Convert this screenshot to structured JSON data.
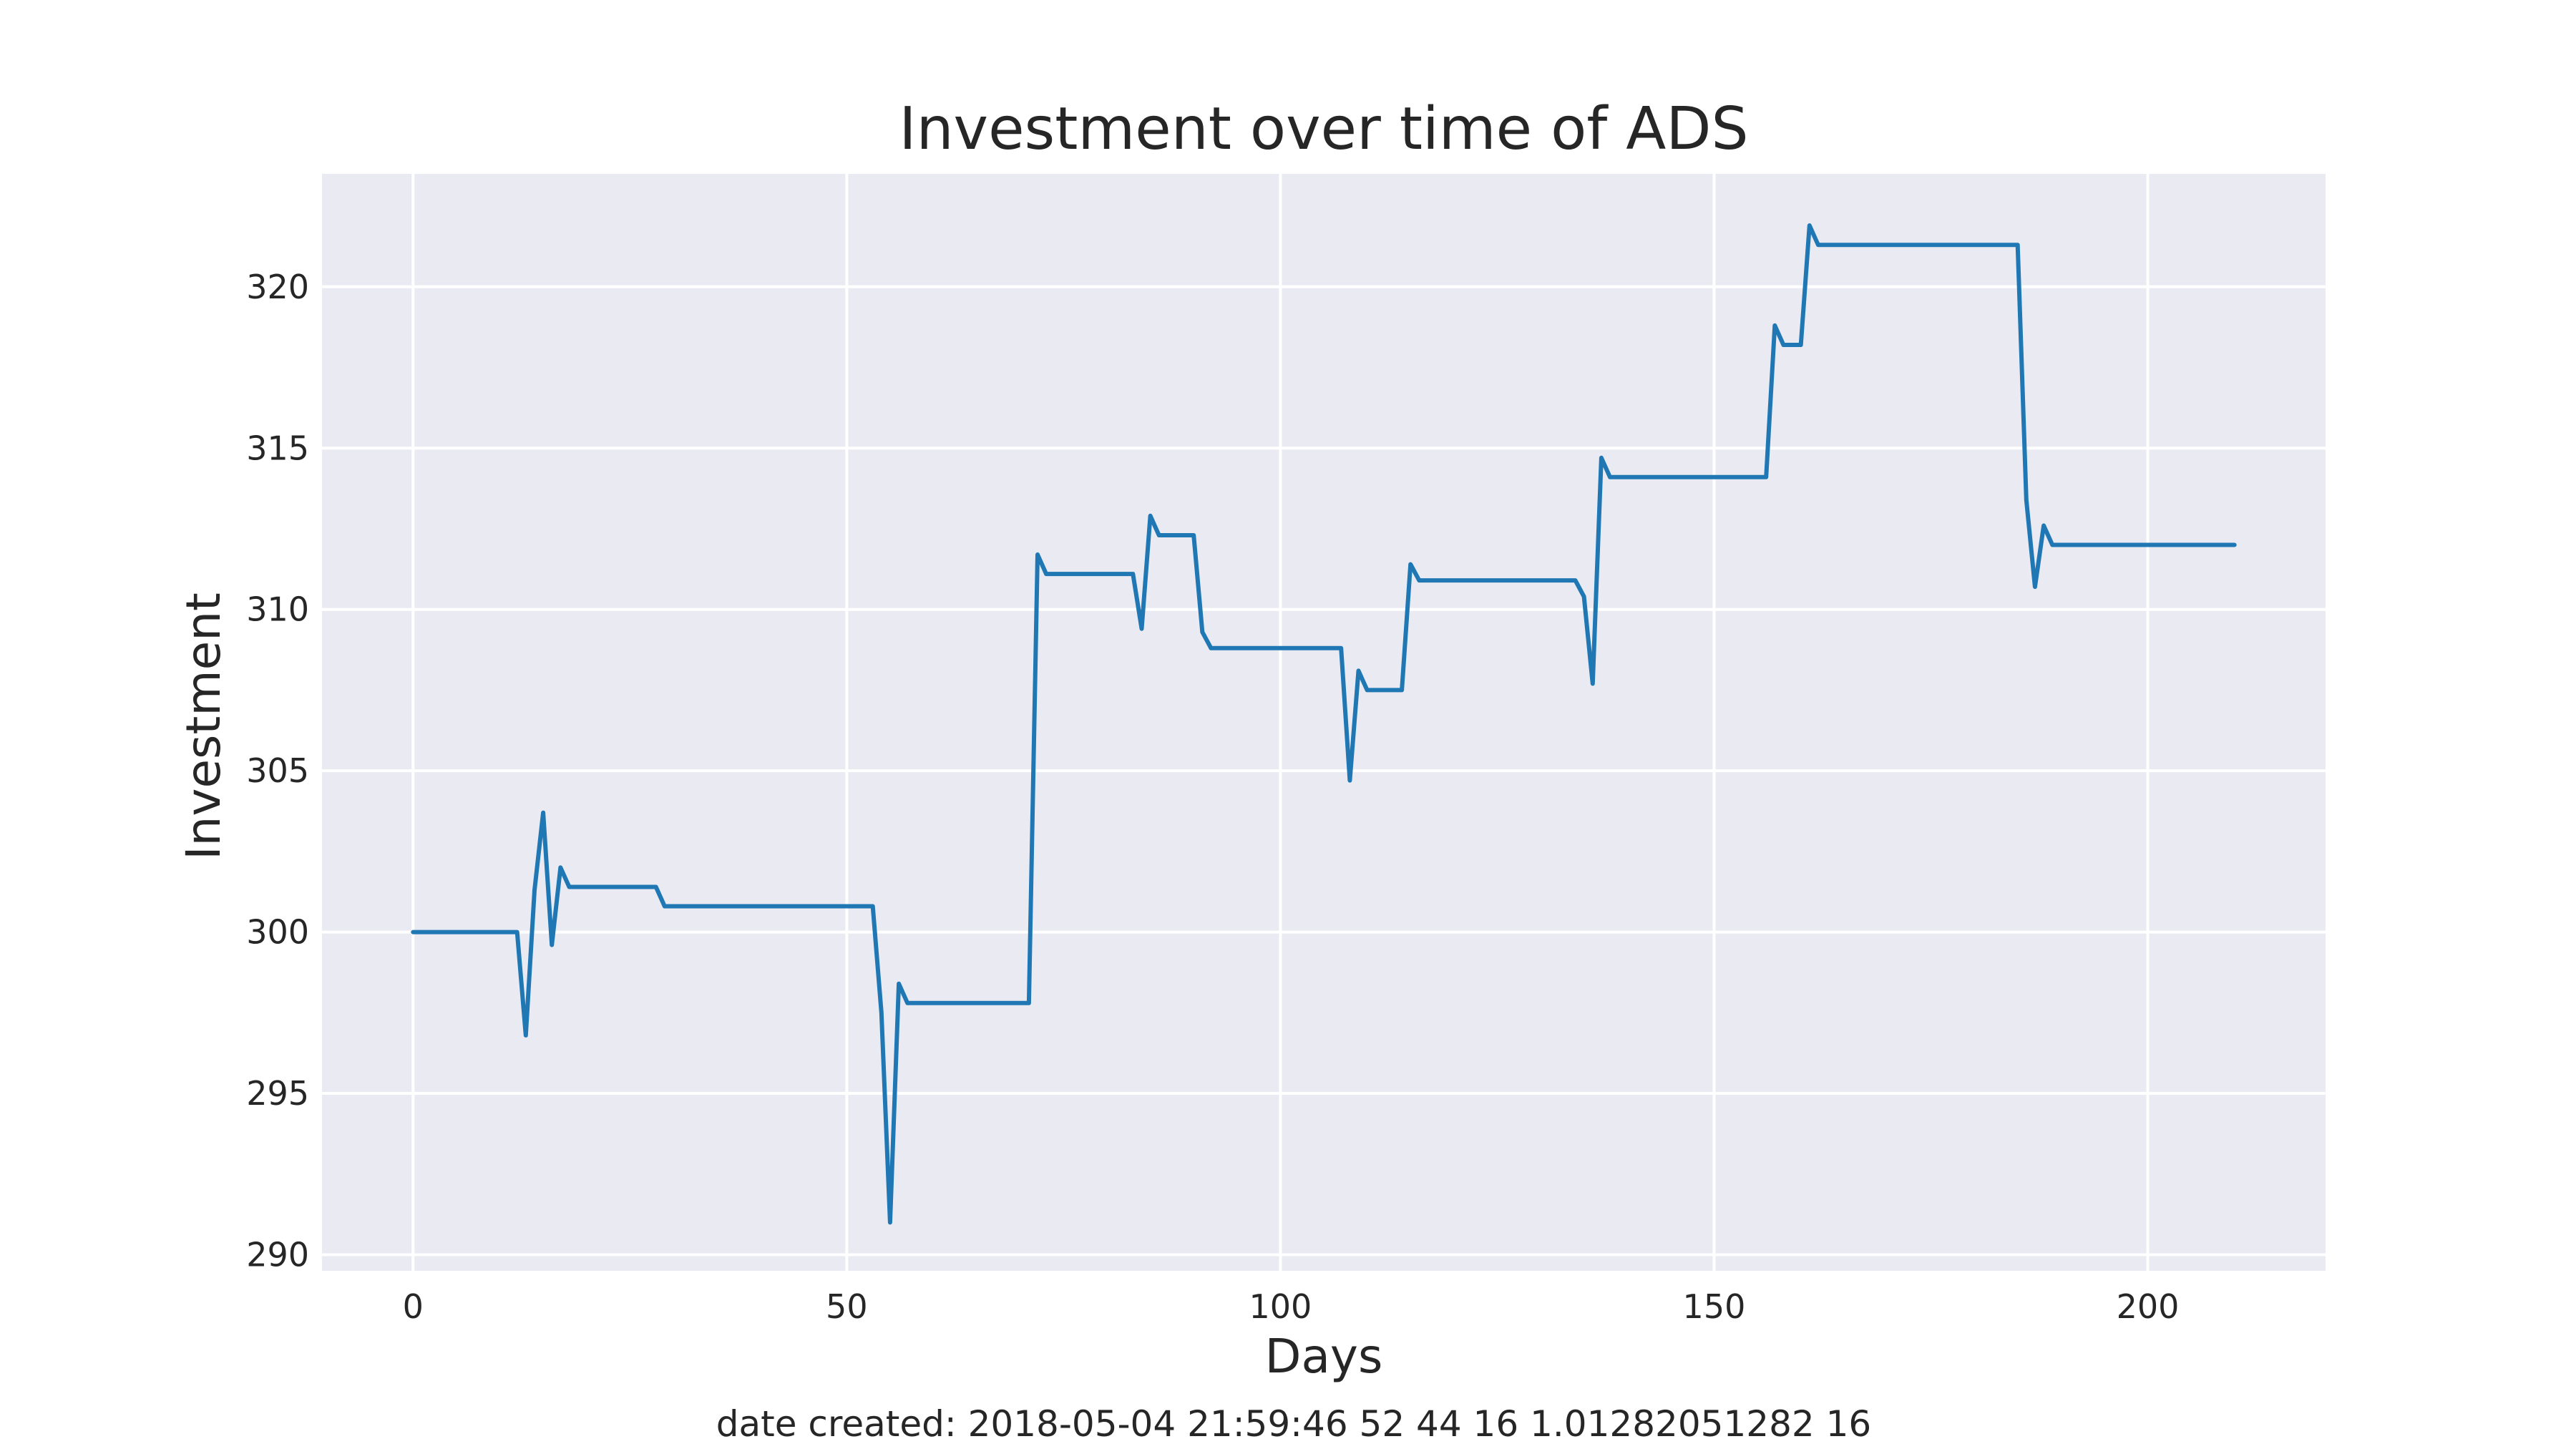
{
  "chart_data": {
    "type": "line",
    "title": "Investment over time of ADS",
    "xlabel": "Days",
    "ylabel": "Investment",
    "xlim": [
      -10.5,
      220.5
    ],
    "ylim": [
      289.5,
      323.5
    ],
    "xticks": [
      0,
      50,
      100,
      150,
      200
    ],
    "yticks": [
      290,
      295,
      300,
      305,
      310,
      315,
      320
    ],
    "grid": true,
    "legend": false,
    "style": "seaborn-darkgrid",
    "colors": {
      "background": "#eaeaf2",
      "grid": "#ffffff",
      "line": "#1f77b4",
      "text": "#262626"
    },
    "series": [
      {
        "x": [
          0,
          12,
          13,
          14,
          15,
          16,
          17,
          18,
          28,
          29,
          53,
          54,
          55,
          56,
          57,
          71,
          72,
          73,
          83,
          84,
          85,
          86,
          90,
          91,
          92,
          107,
          108,
          109,
          110,
          114,
          115,
          116,
          134,
          135,
          136,
          137,
          138,
          156,
          157,
          158,
          160,
          161,
          162,
          185,
          186,
          187,
          188,
          189,
          210
        ],
        "y": [
          300.0,
          300.0,
          296.8,
          301.3,
          303.7,
          299.6,
          302.0,
          301.4,
          301.4,
          300.8,
          300.8,
          297.5,
          291.0,
          298.4,
          297.8,
          297.8,
          311.7,
          311.1,
          311.1,
          309.4,
          312.9,
          312.3,
          312.3,
          309.3,
          308.8,
          308.8,
          304.7,
          308.1,
          307.5,
          307.5,
          311.4,
          310.9,
          310.9,
          310.4,
          307.7,
          314.7,
          314.1,
          314.1,
          318.8,
          318.2,
          318.2,
          321.9,
          321.3,
          321.3,
          313.4,
          310.7,
          312.6,
          312.0,
          312.0
        ]
      }
    ]
  },
  "caption": "date created: 2018-05-04 21:59:46 52 44 16 1.01282051282 16"
}
